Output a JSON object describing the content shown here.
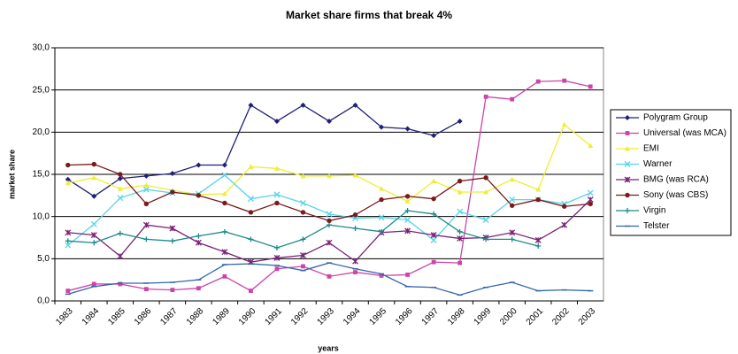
{
  "chart_data": {
    "type": "line",
    "title": "Market share firms that break 4%",
    "xlabel": "years",
    "ylabel": "market share",
    "categories": [
      "1983",
      "1984",
      "1985",
      "1986",
      "1987",
      "1988",
      "1989",
      "1990",
      "1991",
      "1992",
      "1993",
      "1994",
      "1995",
      "1996",
      "1997",
      "1998",
      "1999",
      "2000",
      "2001",
      "2002",
      "2003"
    ],
    "ylim": [
      0,
      30
    ],
    "yticks": [
      {
        "value": 0,
        "label": "0,0"
      },
      {
        "value": 5,
        "label": "5,0"
      },
      {
        "value": 10,
        "label": "10,0"
      },
      {
        "value": 15,
        "label": "15,0"
      },
      {
        "value": 20,
        "label": "20,0"
      },
      {
        "value": 25,
        "label": "25,0"
      },
      {
        "value": 30,
        "label": "30,0"
      }
    ],
    "grid": true,
    "legend": "right",
    "series": [
      {
        "name": "Polygram Group",
        "color": "#1f1f7a",
        "marker": "diamond",
        "values": [
          14.4,
          12.4,
          14.5,
          14.8,
          15.1,
          16.1,
          16.1,
          23.2,
          21.3,
          23.2,
          21.3,
          23.2,
          20.6,
          20.4,
          19.6,
          21.3,
          null,
          null,
          null,
          null,
          null
        ]
      },
      {
        "name": "Universal (was MCA)",
        "color": "#cc44aa",
        "marker": "square",
        "values": [
          1.2,
          2.0,
          2.0,
          1.4,
          1.3,
          1.5,
          2.9,
          1.2,
          3.8,
          4.1,
          2.9,
          3.4,
          3.0,
          3.1,
          4.6,
          4.5,
          24.2,
          23.9,
          26.0,
          26.1,
          25.4
        ]
      },
      {
        "name": "EMI",
        "color": "#eeee33",
        "marker": "triangle",
        "values": [
          14.0,
          14.6,
          13.3,
          13.7,
          13.1,
          12.6,
          12.7,
          15.9,
          15.7,
          14.8,
          14.8,
          14.9,
          13.3,
          11.8,
          14.2,
          12.9,
          12.9,
          14.4,
          13.2,
          20.9,
          18.4
        ]
      },
      {
        "name": "Warner",
        "color": "#55d4e8",
        "marker": "x",
        "values": [
          6.6,
          9.1,
          12.2,
          13.2,
          12.8,
          12.7,
          14.9,
          12.1,
          12.6,
          11.6,
          10.3,
          9.8,
          9.9,
          9.6,
          7.2,
          10.6,
          9.6,
          12.0,
          12.0,
          11.5,
          12.8
        ]
      },
      {
        "name": "BMG (was RCA)",
        "color": "#7a2277",
        "marker": "star",
        "values": [
          8.1,
          7.8,
          5.3,
          9.0,
          8.6,
          6.9,
          5.8,
          4.6,
          5.1,
          5.4,
          6.9,
          4.7,
          8.1,
          8.3,
          7.8,
          7.4,
          7.5,
          8.1,
          7.2,
          9.0,
          12.0
        ]
      },
      {
        "name": "Sony (was CBS)",
        "color": "#7a1a1a",
        "marker": "circle",
        "values": [
          16.1,
          16.2,
          15.0,
          11.5,
          12.9,
          12.5,
          11.6,
          10.5,
          11.6,
          10.5,
          9.5,
          10.2,
          12.0,
          12.4,
          12.1,
          14.2,
          14.6,
          11.3,
          12.0,
          11.2,
          11.5
        ]
      },
      {
        "name": "Virgin",
        "color": "#1a8a8a",
        "marker": "plus",
        "values": [
          7.1,
          6.9,
          8.0,
          7.3,
          7.1,
          7.7,
          8.2,
          7.3,
          6.3,
          7.3,
          9.0,
          8.6,
          8.2,
          10.7,
          10.3,
          8.2,
          7.3,
          7.3,
          6.5,
          null,
          null
        ]
      },
      {
        "name": "Telster",
        "color": "#3366aa",
        "marker": "dash",
        "values": [
          0.8,
          1.7,
          2.1,
          2.1,
          2.2,
          2.5,
          4.3,
          4.4,
          4.2,
          3.6,
          4.5,
          3.8,
          3.2,
          1.7,
          1.6,
          0.7,
          1.6,
          2.2,
          1.2,
          1.3,
          1.2
        ]
      }
    ]
  }
}
